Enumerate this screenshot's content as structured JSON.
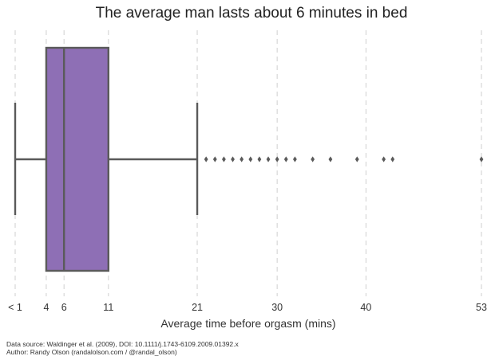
{
  "chart_data": {
    "type": "box",
    "title": "The average man lasts about 6 minutes in bed",
    "xlabel": "Average time before orgasm (mins)",
    "orientation": "horizontal",
    "x_ticks": [
      {
        "value": 0.5,
        "label": "< 1"
      },
      {
        "value": 4,
        "label": "4"
      },
      {
        "value": 6,
        "label": "6"
      },
      {
        "value": 11,
        "label": "11"
      },
      {
        "value": 21,
        "label": "21"
      },
      {
        "value": 30,
        "label": "30"
      },
      {
        "value": 40,
        "label": "40"
      },
      {
        "value": 53,
        "label": "53"
      }
    ],
    "xlim": [
      0.5,
      53
    ],
    "grid": "vertical dashed at ticks",
    "box": {
      "whisker_low": 0.5,
      "q1": 4,
      "median": 6,
      "q3": 11,
      "whisker_high": 21,
      "outliers": [
        22,
        23,
        24,
        25,
        26,
        27,
        28,
        29,
        30,
        31,
        32,
        34,
        36,
        39,
        42,
        43,
        53
      ],
      "color": "#8E6FB5"
    }
  },
  "footer": {
    "source": "Data source: Waldinger et al. (2009), DOI: 10.1111/j.1743-6109.2009.01392.x",
    "author": "Author: Randy Olson (randalolson.com / @randal_olson)"
  }
}
